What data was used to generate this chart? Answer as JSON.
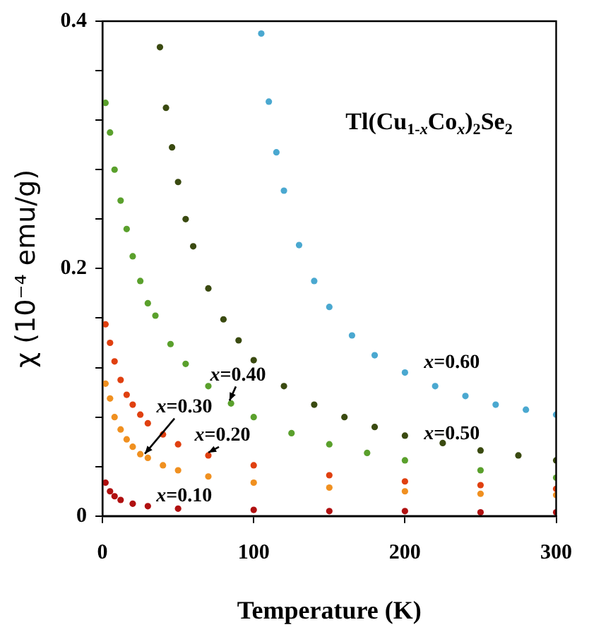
{
  "chart_data": {
    "type": "scatter",
    "title": "Tl(Cu$_{1-x}$Co$_{x}$)$_{2}$Se$_{2}$",
    "xlabel": "Temperature (K)",
    "ylabel": "χ (10⁻⁴ emu/g)",
    "xlim": [
      0,
      300
    ],
    "xticks": [
      0,
      100,
      200,
      300
    ],
    "ylim": [
      0,
      0.4
    ],
    "yticks": [
      0,
      {
        "value": 0.04,
        "label": null
      },
      {
        "value": 0.08,
        "label": null
      },
      {
        "value": 0.12,
        "label": null
      },
      {
        "value": 0.16,
        "label": null
      },
      0.2,
      {
        "value": 0.24,
        "label": null
      },
      {
        "value": 0.28,
        "label": null
      },
      {
        "value": 0.32,
        "label": null
      },
      {
        "value": 0.36,
        "label": null
      },
      0.4
    ],
    "grid": false,
    "legend": false,
    "marker": "circle",
    "series": [
      {
        "color": "#4aa8d0",
        "x": [
          105,
          110,
          115,
          120,
          130,
          140,
          150,
          165,
          180,
          200,
          220,
          240,
          260,
          280,
          300
        ],
        "values": [
          0.39,
          0.335,
          0.294,
          0.263,
          0.219,
          0.19,
          0.169,
          0.146,
          0.13,
          0.116,
          0.105,
          0.097,
          0.09,
          0.086,
          0.082
        ]
      },
      {
        "color": "#3a4a10",
        "x": [
          38,
          42,
          46,
          50,
          55,
          60,
          70,
          80,
          90,
          100,
          120,
          140,
          160,
          180,
          200,
          225,
          250,
          275,
          300
        ],
        "values": [
          0.379,
          0.33,
          0.298,
          0.27,
          0.24,
          0.218,
          0.184,
          0.159,
          0.142,
          0.126,
          0.105,
          0.09,
          0.08,
          0.072,
          0.065,
          0.059,
          0.053,
          0.049,
          0.045
        ]
      },
      {
        "color": "#5aa02c",
        "x": [
          2,
          5,
          8,
          12,
          16,
          20,
          25,
          30,
          35,
          45,
          55,
          70,
          85,
          100,
          125,
          150,
          175,
          200,
          250,
          300
        ],
        "values": [
          0.334,
          0.31,
          0.28,
          0.255,
          0.232,
          0.21,
          0.19,
          0.172,
          0.162,
          0.139,
          0.123,
          0.105,
          0.091,
          0.08,
          0.067,
          0.058,
          0.051,
          0.045,
          0.037,
          0.031
        ]
      },
      {
        "color": "#e04010",
        "x": [
          2,
          5,
          8,
          12,
          16,
          20,
          25,
          30,
          40,
          50,
          70,
          100,
          150,
          200,
          250,
          300
        ],
        "values": [
          0.155,
          0.14,
          0.125,
          0.11,
          0.098,
          0.09,
          0.082,
          0.075,
          0.066,
          0.058,
          0.049,
          0.041,
          0.033,
          0.028,
          0.025,
          0.022
        ]
      },
      {
        "color": "#f09020",
        "x": [
          2,
          5,
          8,
          12,
          16,
          20,
          25,
          30,
          40,
          50,
          70,
          100,
          150,
          200,
          250,
          300
        ],
        "values": [
          0.107,
          0.095,
          0.08,
          0.07,
          0.062,
          0.056,
          0.05,
          0.047,
          0.041,
          0.037,
          0.032,
          0.027,
          0.023,
          0.02,
          0.018,
          0.017
        ]
      },
      {
        "color": "#b01010",
        "x": [
          2,
          5,
          8,
          12,
          20,
          30,
          50,
          100,
          150,
          200,
          250,
          300
        ],
        "values": [
          0.027,
          0.02,
          0.016,
          0.013,
          0.01,
          0.008,
          0.006,
          0.005,
          0.004,
          0.004,
          0.003,
          0.003
        ]
      }
    ],
    "annotations": [
      "x=0.60",
      "x=0.50",
      {
        "text": "x=0.40",
        "x": 84,
        "y": 0.091
      },
      {
        "text": "x=0.30",
        "x": 28,
        "y": 0.048
      },
      {
        "text": "x=0.20",
        "x": 70,
        "y": 0.049
      },
      "x=0.10"
    ]
  }
}
